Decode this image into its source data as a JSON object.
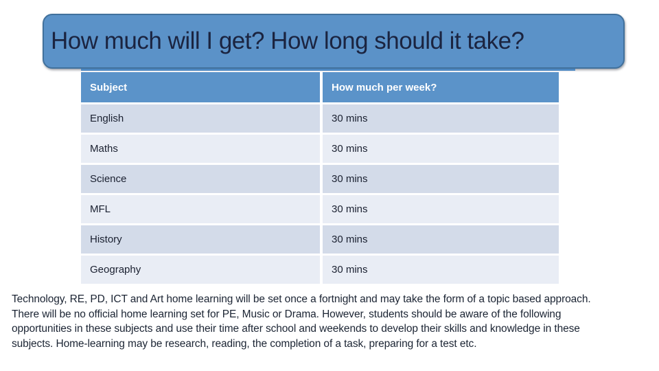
{
  "slide": {
    "title": "How much will I get? How long should it take?",
    "table": {
      "headers": [
        "Subject",
        "How much per week?"
      ],
      "rows": [
        [
          "English",
          "30 mins"
        ],
        [
          "Maths",
          "30 mins"
        ],
        [
          "Science",
          "30 mins"
        ],
        [
          "MFL",
          "30 mins"
        ],
        [
          "History",
          "30 mins"
        ],
        [
          "Geography",
          "30 mins"
        ]
      ]
    },
    "paragraph_lines": [
      "Technology, RE, PD, ICT and Art home learning will be set once a fortnight and may take the form of a topic based approach.",
      "There will be no official home learning set for PE, Music or Drama. However, students should be aware of the following",
      "opportunities in these subjects and use their time after school and weekends to develop their skills and knowledge in these",
      "subjects. Home-learning may be research, reading, the completion of a task, preparing for a test etc."
    ],
    "colors": {
      "banner_fill": "#5B92C8",
      "banner_border": "#41719C",
      "header_fill": "#5B93C9",
      "band_dark": "#D3DBE9",
      "band_light": "#E9EDF5",
      "table_top_border": "#4E88C2",
      "title_text": "#1B2440",
      "cell_text": "#1A2030",
      "paragraph_text": "#1B2433"
    }
  }
}
